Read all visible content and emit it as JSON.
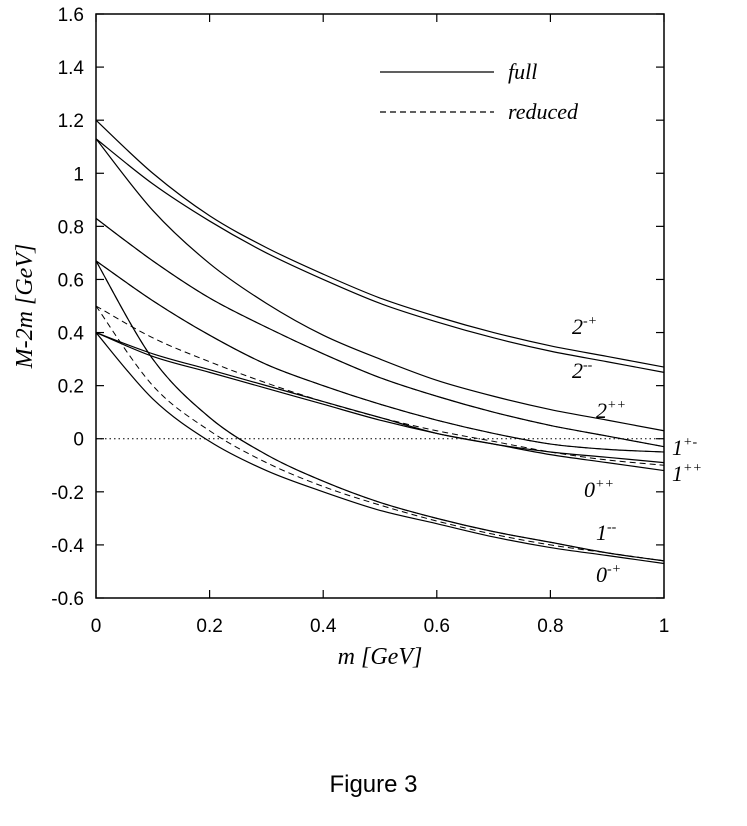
{
  "caption": "Figure 3",
  "chart_data": {
    "type": "line",
    "xlabel": "m [GeV]",
    "ylabel": "M-2m [GeV]",
    "xlim": [
      0,
      1
    ],
    "ylim": [
      -0.6,
      1.6
    ],
    "xticks": [
      0,
      0.2,
      0.4,
      0.6,
      0.8,
      1
    ],
    "xtick_labels": [
      "0",
      "0.2",
      "0.4",
      "0.6",
      "0.8",
      "1"
    ],
    "yticks": [
      -0.6,
      -0.4,
      -0.2,
      0,
      0.2,
      0.4,
      0.6,
      0.8,
      1,
      1.2,
      1.4,
      1.6
    ],
    "ytick_labels": [
      "-0.6",
      "-0.4",
      "-0.2",
      "0",
      "0.2",
      "0.4",
      "0.6",
      "0.8",
      "1",
      "1.2",
      "1.4",
      "1.6"
    ],
    "legend": {
      "position": "top-right",
      "entries": [
        {
          "label": "full",
          "style": "solid"
        },
        {
          "label": "reduced",
          "style": "dashed"
        }
      ]
    },
    "zero_line": {
      "y": 0,
      "style": "dotted"
    },
    "x": [
      0,
      0.1,
      0.2,
      0.3,
      0.4,
      0.5,
      0.6,
      0.7,
      0.8,
      0.9,
      1
    ],
    "series": [
      {
        "label_main": "2",
        "label_sup": "-+",
        "style": "solid",
        "values": [
          1.2,
          1.0,
          0.84,
          0.72,
          0.62,
          0.53,
          0.46,
          0.4,
          0.35,
          0.31,
          0.27
        ]
      },
      {
        "label_main": "2",
        "label_sup": "--",
        "style": "solid",
        "values": [
          1.13,
          0.96,
          0.82,
          0.7,
          0.6,
          0.51,
          0.44,
          0.38,
          0.33,
          0.29,
          0.25
        ]
      },
      {
        "style": "solid",
        "values": [
          1.13,
          0.86,
          0.66,
          0.51,
          0.39,
          0.3,
          0.22,
          0.16,
          0.11,
          0.07,
          0.03
        ]
      },
      {
        "label_main": "2",
        "label_sup": "++",
        "style": "solid",
        "values": [
          0.83,
          0.67,
          0.53,
          0.42,
          0.32,
          0.23,
          0.16,
          0.1,
          0.05,
          0.01,
          -0.03
        ]
      },
      {
        "style": "dashed",
        "values": [
          0.83,
          0.67,
          0.53,
          0.42,
          0.32,
          0.23,
          0.16,
          0.1,
          0.05,
          0.01,
          -0.03
        ]
      },
      {
        "label_main": "1",
        "label_sup": "+-",
        "style": "solid",
        "values": [
          0.67,
          0.52,
          0.39,
          0.28,
          0.2,
          0.13,
          0.07,
          0.02,
          -0.02,
          -0.04,
          -0.05
        ]
      },
      {
        "style": "dashed",
        "values": [
          0.67,
          0.52,
          0.39,
          0.28,
          0.2,
          0.13,
          0.07,
          0.02,
          -0.02,
          -0.04,
          -0.05
        ]
      },
      {
        "label_main": "1",
        "label_sup": "++",
        "style": "solid",
        "values": [
          0.4,
          0.31,
          0.25,
          0.19,
          0.13,
          0.07,
          0.02,
          -0.02,
          -0.06,
          -0.09,
          -0.12
        ]
      },
      {
        "style": "dashed",
        "values": [
          0.5,
          0.38,
          0.29,
          0.21,
          0.14,
          0.08,
          0.03,
          -0.01,
          -0.05,
          -0.08,
          -0.1
        ]
      },
      {
        "label_main": "0",
        "label_sup": "++",
        "style": "solid",
        "values": [
          0.4,
          0.32,
          0.26,
          0.2,
          0.14,
          0.08,
          0.02,
          -0.02,
          -0.05,
          -0.07,
          -0.09
        ]
      },
      {
        "label_main": "1",
        "label_sup": "--",
        "style": "solid",
        "values": [
          0.67,
          0.3,
          0.08,
          -0.06,
          -0.16,
          -0.24,
          -0.3,
          -0.35,
          -0.39,
          -0.43,
          -0.46
        ]
      },
      {
        "style": "dashed",
        "values": [
          0.67,
          0.3,
          0.08,
          -0.06,
          -0.16,
          -0.24,
          -0.3,
          -0.35,
          -0.39,
          -0.43,
          -0.46
        ]
      },
      {
        "label_main": "0",
        "label_sup": "-+",
        "style": "solid",
        "values": [
          0.4,
          0.15,
          -0.01,
          -0.12,
          -0.2,
          -0.27,
          -0.32,
          -0.37,
          -0.41,
          -0.44,
          -0.47
        ]
      },
      {
        "style": "dashed",
        "values": [
          0.5,
          0.2,
          0.03,
          -0.09,
          -0.18,
          -0.25,
          -0.31,
          -0.36,
          -0.4,
          -0.43,
          -0.46
        ]
      }
    ]
  }
}
